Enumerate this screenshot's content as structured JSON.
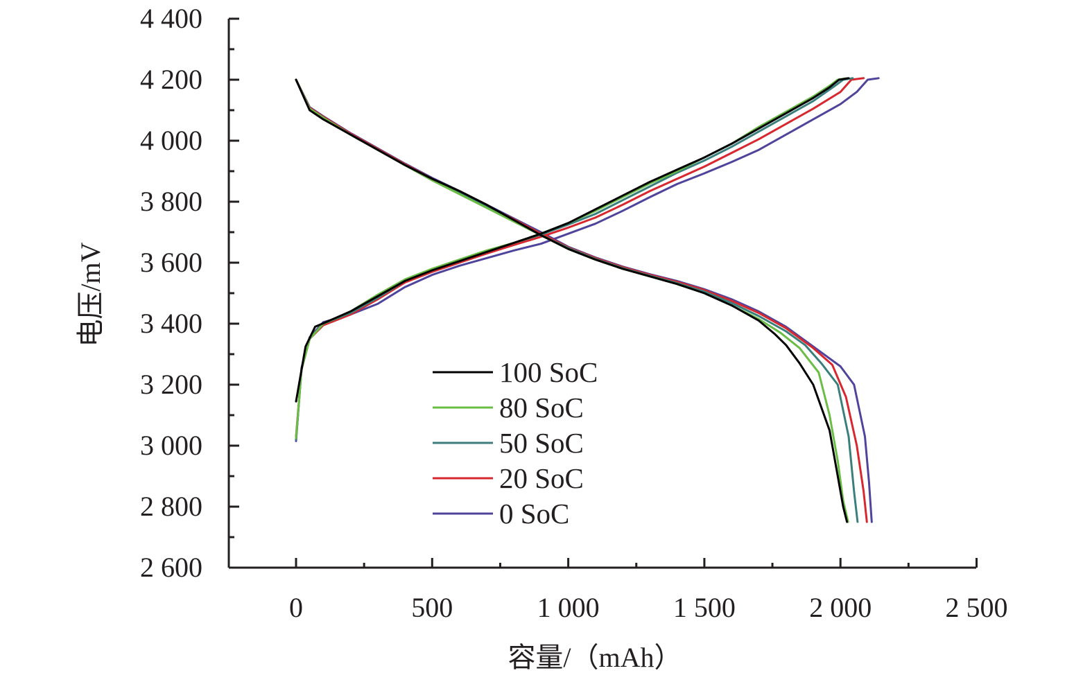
{
  "chart_data": {
    "type": "line",
    "title": "",
    "xlabel": "容量/（mAh）",
    "ylabel": "电压/mV",
    "xlim": [
      -250,
      2500
    ],
    "ylim": [
      2600,
      4400
    ],
    "grid": false,
    "legend_placement": "center-left",
    "x_ticks": [
      {
        "value": 0,
        "label": "0"
      },
      {
        "value": 500,
        "label": "500"
      },
      {
        "value": 1000,
        "label": "1 000"
      },
      {
        "value": 1500,
        "label": "1 500"
      },
      {
        "value": 2000,
        "label": "2 000"
      },
      {
        "value": 2500,
        "label": "2 500"
      }
    ],
    "x_minor_ticks": [
      250,
      750,
      1250,
      1750,
      2250
    ],
    "y_ticks": [
      {
        "value": 2600,
        "label": "2 600"
      },
      {
        "value": 2800,
        "label": "2 800"
      },
      {
        "value": 3000,
        "label": "3 000"
      },
      {
        "value": 3200,
        "label": "3 200"
      },
      {
        "value": 3400,
        "label": "3 400"
      },
      {
        "value": 3600,
        "label": "3 600"
      },
      {
        "value": 3800,
        "label": "3 800"
      },
      {
        "value": 4000,
        "label": "4 000"
      },
      {
        "value": 4200,
        "label": "4 200"
      },
      {
        "value": 4400,
        "label": "4 400"
      }
    ],
    "y_minor_ticks": [
      2700,
      2900,
      3100,
      3300,
      3500,
      3700,
      3900,
      4100,
      4300
    ],
    "series": [
      {
        "name": "100 SoC",
        "color": "#000000",
        "charge": {
          "x": [
            0,
            35,
            70,
            110,
            200,
            300,
            400,
            500,
            600,
            700,
            800,
            900,
            1000,
            1100,
            1200,
            1300,
            1400,
            1500,
            1600,
            1700,
            1800,
            1900,
            1960,
            1995,
            2030
          ],
          "y": [
            3145,
            3325,
            3390,
            3405,
            3440,
            3490,
            3540,
            3575,
            3605,
            3635,
            3665,
            3695,
            3730,
            3775,
            3820,
            3865,
            3905,
            3945,
            3990,
            4040,
            4090,
            4140,
            4175,
            4200,
            4205
          ]
        },
        "discharge": {
          "x": [
            0,
            50,
            100,
            200,
            300,
            400,
            500,
            600,
            700,
            800,
            900,
            1000,
            1100,
            1200,
            1300,
            1400,
            1500,
            1600,
            1700,
            1760,
            1800,
            1850,
            1900,
            1960,
            1990,
            2010,
            2024
          ],
          "y": [
            4200,
            4100,
            4070,
            4020,
            3970,
            3920,
            3875,
            3835,
            3790,
            3740,
            3690,
            3645,
            3610,
            3580,
            3555,
            3530,
            3500,
            3460,
            3410,
            3365,
            3330,
            3270,
            3200,
            3050,
            2900,
            2800,
            2750
          ]
        }
      },
      {
        "name": "80 SoC",
        "color": "#6abd45",
        "charge": {
          "x": [
            0,
            20,
            50,
            100,
            200,
            300,
            400,
            500,
            600,
            700,
            800,
            900,
            1000,
            1100,
            1200,
            1300,
            1400,
            1500,
            1600,
            1700,
            1800,
            1900,
            1960,
            1990,
            2025
          ],
          "y": [
            3025,
            3250,
            3350,
            3400,
            3440,
            3495,
            3545,
            3580,
            3610,
            3640,
            3665,
            3695,
            3730,
            3770,
            3815,
            3860,
            3900,
            3945,
            3990,
            4045,
            4095,
            4145,
            4180,
            4200,
            4205
          ]
        },
        "discharge": {
          "x": [
            0,
            50,
            100,
            200,
            300,
            400,
            500,
            600,
            700,
            800,
            900,
            1000,
            1100,
            1200,
            1300,
            1400,
            1500,
            1600,
            1700,
            1780,
            1850,
            1920,
            1960,
            1990,
            2010,
            2028
          ],
          "y": [
            4200,
            4105,
            4075,
            4020,
            3970,
            3920,
            3870,
            3825,
            3780,
            3735,
            3690,
            3645,
            3610,
            3580,
            3555,
            3530,
            3500,
            3460,
            3415,
            3370,
            3320,
            3240,
            3100,
            2950,
            2820,
            2750
          ]
        }
      },
      {
        "name": "50 SoC",
        "color": "#3a7f7c",
        "charge": {
          "x": [
            0,
            20,
            50,
            100,
            200,
            300,
            400,
            500,
            600,
            700,
            800,
            900,
            1000,
            1100,
            1200,
            1300,
            1400,
            1500,
            1600,
            1700,
            1800,
            1900,
            1980,
            2010,
            2045
          ],
          "y": [
            3020,
            3250,
            3350,
            3400,
            3435,
            3485,
            3540,
            3575,
            3605,
            3635,
            3665,
            3692,
            3725,
            3760,
            3805,
            3850,
            3895,
            3935,
            3980,
            4030,
            4080,
            4130,
            4180,
            4200,
            4205
          ]
        },
        "discharge": {
          "x": [
            0,
            50,
            100,
            200,
            300,
            400,
            500,
            600,
            700,
            800,
            900,
            1000,
            1100,
            1200,
            1300,
            1400,
            1500,
            1600,
            1700,
            1800,
            1870,
            1930,
            1990,
            2030,
            2050,
            2063
          ],
          "y": [
            4200,
            4105,
            4075,
            4020,
            3970,
            3920,
            3872,
            3828,
            3783,
            3738,
            3690,
            3648,
            3612,
            3582,
            3557,
            3533,
            3505,
            3468,
            3425,
            3375,
            3330,
            3270,
            3200,
            3030,
            2850,
            2750
          ]
        }
      },
      {
        "name": "20 SoC",
        "color": "#d7282f",
        "charge": {
          "x": [
            0,
            20,
            50,
            100,
            200,
            300,
            400,
            500,
            600,
            700,
            800,
            900,
            1000,
            1100,
            1200,
            1300,
            1400,
            1500,
            1600,
            1700,
            1800,
            1900,
            2000,
            2040,
            2085
          ],
          "y": [
            3030,
            3250,
            3350,
            3395,
            3430,
            3480,
            3535,
            3570,
            3600,
            3630,
            3658,
            3685,
            3715,
            3748,
            3790,
            3835,
            3875,
            3915,
            3960,
            4005,
            4055,
            4105,
            4160,
            4200,
            4205
          ]
        },
        "discharge": {
          "x": [
            0,
            50,
            100,
            200,
            300,
            400,
            500,
            600,
            700,
            800,
            900,
            1000,
            1100,
            1200,
            1300,
            1400,
            1500,
            1600,
            1700,
            1800,
            1900,
            1970,
            2020,
            2060,
            2085,
            2097
          ],
          "y": [
            4200,
            4108,
            4078,
            4023,
            3973,
            3923,
            3875,
            3832,
            3787,
            3742,
            3695,
            3650,
            3615,
            3585,
            3560,
            3537,
            3510,
            3475,
            3435,
            3385,
            3320,
            3265,
            3160,
            3000,
            2850,
            2750
          ]
        }
      },
      {
        "name": "0 SoC",
        "color": "#4f449b",
        "charge": {
          "x": [
            0,
            20,
            50,
            100,
            200,
            300,
            400,
            500,
            600,
            700,
            800,
            900,
            1000,
            1100,
            1200,
            1300,
            1400,
            1500,
            1600,
            1700,
            1800,
            1900,
            2000,
            2060,
            2100,
            2140
          ],
          "y": [
            3015,
            3255,
            3355,
            3405,
            3430,
            3465,
            3520,
            3560,
            3590,
            3615,
            3640,
            3662,
            3695,
            3728,
            3770,
            3815,
            3858,
            3893,
            3930,
            3970,
            4020,
            4070,
            4120,
            4160,
            4200,
            4205
          ]
        },
        "discharge": {
          "x": [
            0,
            50,
            100,
            200,
            300,
            400,
            500,
            600,
            700,
            800,
            900,
            1000,
            1100,
            1200,
            1300,
            1400,
            1500,
            1600,
            1700,
            1800,
            1900,
            2000,
            2050,
            2090,
            2105,
            2115
          ],
          "y": [
            4200,
            4110,
            4080,
            4025,
            3975,
            3925,
            3878,
            3835,
            3790,
            3745,
            3700,
            3652,
            3617,
            3587,
            3562,
            3540,
            3513,
            3480,
            3440,
            3390,
            3325,
            3260,
            3200,
            3030,
            2880,
            2750
          ]
        }
      }
    ]
  }
}
